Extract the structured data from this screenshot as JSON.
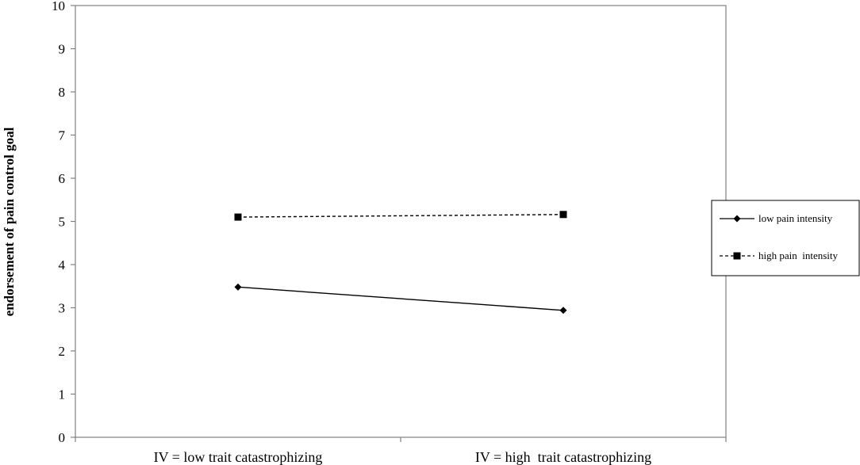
{
  "chart_data": {
    "type": "line",
    "ylabel": "endorsement of pain control goal",
    "ylim": [
      0,
      10
    ],
    "yticks": [
      "0",
      "1",
      "2",
      "3",
      "4",
      "5",
      "6",
      "7",
      "8",
      "9",
      "10"
    ],
    "categories": [
      "IV = low trait catastrophizing",
      "IV = high  trait catastrophizing"
    ],
    "series": [
      {
        "name": "low pain intensity",
        "values": [
          3.48,
          2.94
        ],
        "marker": "diamond",
        "line_style": "solid",
        "color": "#000000"
      },
      {
        "name": "high pain  intensity",
        "values": [
          5.1,
          5.16
        ],
        "marker": "square",
        "line_style": "dashed",
        "color": "#000000"
      }
    ],
    "grid": false,
    "legend_position": "right"
  }
}
